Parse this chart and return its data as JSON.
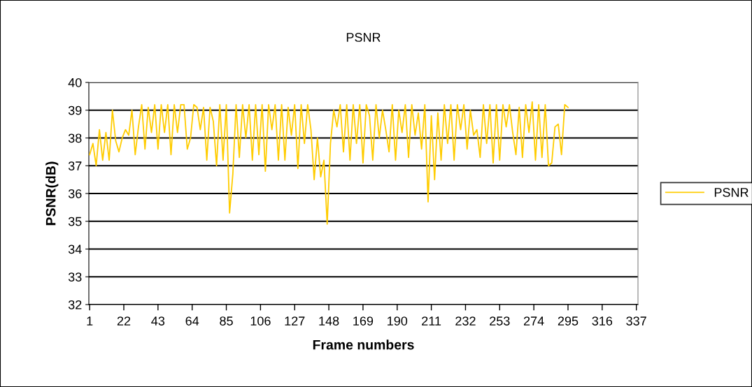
{
  "chart_data": {
    "type": "line",
    "title": "PSNR",
    "xlabel": "Frame numbers",
    "ylabel": "PSNR(dB)",
    "x": [
      1,
      3,
      5,
      7,
      9,
      11,
      13,
      15,
      17,
      19,
      21,
      23,
      25,
      27,
      29,
      31,
      33,
      35,
      37,
      39,
      41,
      43,
      45,
      47,
      49,
      51,
      53,
      55,
      57,
      59,
      61,
      63,
      65,
      67,
      69,
      71,
      73,
      75,
      77,
      79,
      81,
      83,
      85,
      87,
      89,
      91,
      93,
      95,
      97,
      99,
      101,
      103,
      105,
      107,
      109,
      111,
      113,
      115,
      117,
      119,
      121,
      123,
      125,
      127,
      129,
      131,
      133,
      135,
      137,
      139,
      141,
      143,
      145,
      147,
      149,
      151,
      153,
      155,
      157,
      159,
      161,
      163,
      165,
      167,
      169,
      171,
      173,
      175,
      177,
      179,
      181,
      183,
      185,
      187,
      189,
      191,
      193,
      195,
      197,
      199,
      201,
      203,
      205,
      207,
      209,
      211,
      213,
      215,
      217,
      219,
      221,
      223,
      225,
      227,
      229,
      231,
      233,
      235,
      237,
      239,
      241,
      243,
      245,
      247,
      249,
      251,
      253,
      255,
      257,
      259,
      261,
      263,
      265,
      267,
      269,
      271,
      273,
      275,
      277,
      279,
      281,
      283,
      285,
      287,
      289,
      291,
      293,
      295
    ],
    "series": [
      {
        "name": "PSNR",
        "color": "#ffcc00",
        "values": [
          37.4,
          37.8,
          37.0,
          38.3,
          37.2,
          38.2,
          37.2,
          39.0,
          37.9,
          37.5,
          38.0,
          38.3,
          38.1,
          39.0,
          37.4,
          38.4,
          39.2,
          37.6,
          39.1,
          38.2,
          39.2,
          37.6,
          39.2,
          38.2,
          39.2,
          37.4,
          39.2,
          38.2,
          39.2,
          39.2,
          37.6,
          38.0,
          39.2,
          39.1,
          38.3,
          39.1,
          37.2,
          39.1,
          38.6,
          37.0,
          39.2,
          37.2,
          39.2,
          35.3,
          36.7,
          39.2,
          37.3,
          39.2,
          38.0,
          39.2,
          37.2,
          39.2,
          37.4,
          39.2,
          36.8,
          39.2,
          38.3,
          39.2,
          37.2,
          39.2,
          37.2,
          39.1,
          38.1,
          39.2,
          36.9,
          39.2,
          37.8,
          39.2,
          38.3,
          36.5,
          38.0,
          36.6,
          37.2,
          34.9,
          37.8,
          39.0,
          38.4,
          39.2,
          37.5,
          39.2,
          37.2,
          39.2,
          37.8,
          39.2,
          37.1,
          39.2,
          38.8,
          37.2,
          39.2,
          38.0,
          39.0,
          38.3,
          37.5,
          39.2,
          37.2,
          39.0,
          38.2,
          39.2,
          37.3,
          39.2,
          38.1,
          38.9,
          37.6,
          39.2,
          35.7,
          38.8,
          36.5,
          38.9,
          37.2,
          39.2,
          37.8,
          39.2,
          37.2,
          39.2,
          38.3,
          39.2,
          37.6,
          39.0,
          38.1,
          38.3,
          37.3,
          39.2,
          37.8,
          39.2,
          37.1,
          39.2,
          37.2,
          39.2,
          38.4,
          39.2,
          38.2,
          37.4,
          39.1,
          37.3,
          39.2,
          38.2,
          39.3,
          37.2,
          39.2,
          37.3,
          39.2,
          37.0,
          37.1,
          38.4,
          38.5,
          37.4,
          39.2,
          39.1
        ]
      }
    ],
    "xlim": [
      0.5,
      338
    ],
    "xticks": [
      1,
      22,
      43,
      64,
      85,
      106,
      127,
      148,
      169,
      190,
      211,
      232,
      253,
      274,
      295,
      316,
      337
    ],
    "ylim": [
      32,
      40
    ],
    "yticks": [
      32,
      33,
      34,
      35,
      36,
      37,
      38,
      39,
      40
    ],
    "grid": "y",
    "legend": "right",
    "marker": "none",
    "line_style": "solid"
  }
}
